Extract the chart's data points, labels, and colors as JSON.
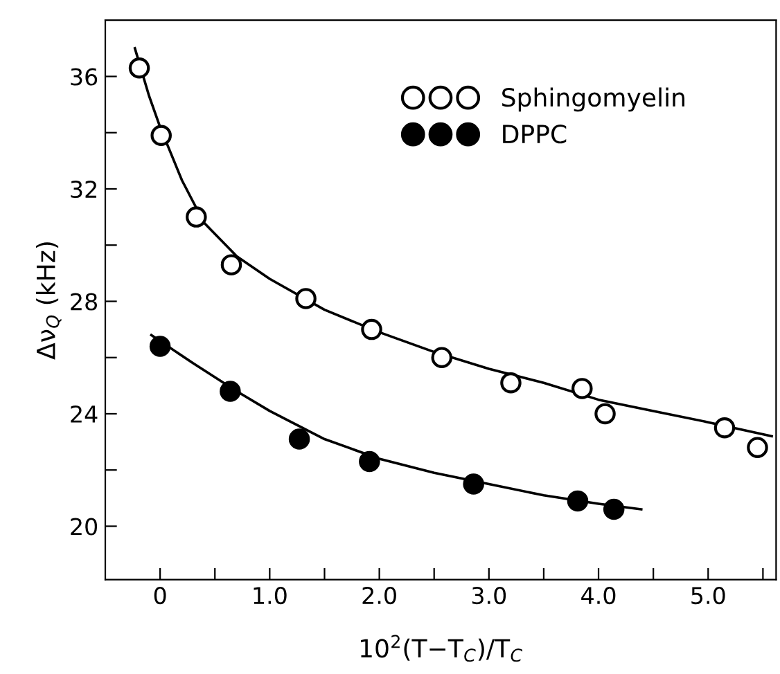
{
  "chart_data": {
    "type": "scatter",
    "xlabel": "10$^{2}$(T−T$_{C}$)/T$_{C}$",
    "ylabel": "Δν$_{Q}$ (kHz)",
    "xlim": [
      -0.5,
      5.62
    ],
    "ylim": [
      18.1,
      38
    ],
    "xticks": [
      0,
      {
        "value": 0.5,
        "label": null
      },
      {
        "value": 1,
        "label": "1.0"
      },
      {
        "value": 1.5,
        "label": null
      },
      {
        "value": 2,
        "label": "2.0"
      },
      {
        "value": 2.5,
        "label": null
      },
      {
        "value": 3,
        "label": "3.0"
      },
      {
        "value": 3.5,
        "label": null
      },
      {
        "value": 4,
        "label": "4.0"
      },
      {
        "value": 4.5,
        "label": null
      },
      {
        "value": 5,
        "label": "5.0"
      },
      {
        "value": 5.5,
        "label": null
      }
    ],
    "yticks": [
      20,
      {
        "value": 22,
        "label": null
      },
      24,
      {
        "value": 26,
        "label": null
      },
      28,
      {
        "value": 30,
        "label": null
      },
      32,
      {
        "value": 34,
        "label": null
      },
      36
    ],
    "grid": false,
    "legend": "top right",
    "series": [
      {
        "name": "Sphingomyelin",
        "marker": "circle",
        "color": "#ffffff",
        "x": [
          -0.19,
          0.01,
          0.33,
          0.65,
          1.33,
          1.93,
          2.57,
          3.2,
          3.85,
          4.06,
          5.15,
          5.45
        ],
        "values": [
          36.3,
          33.9,
          31.0,
          29.3,
          28.1,
          27.0,
          26.0,
          25.1,
          24.9,
          24.0,
          23.5,
          22.8
        ]
      },
      {
        "name": "DPPC",
        "marker": "circle",
        "color": "#000000",
        "x": [
          0.0,
          0.64,
          1.27,
          1.91,
          2.86,
          3.81,
          4.14
        ],
        "values": [
          26.4,
          24.8,
          23.1,
          22.3,
          21.5,
          20.9,
          20.6
        ]
      },
      {
        "type": "line",
        "color": "#000000",
        "x": [
          -0.23,
          -0.1,
          0,
          0.2,
          0.4,
          0.7,
          1.0,
          1.5,
          2.0,
          2.5,
          3.0,
          3.5,
          4.0,
          4.5,
          5.0,
          5.58
        ],
        "values": [
          37.0,
          35.3,
          34.2,
          32.3,
          30.8,
          29.6,
          28.8,
          27.7,
          26.9,
          26.2,
          25.6,
          25.1,
          24.5,
          24.1,
          23.7,
          23.2
        ]
      },
      {
        "type": "line",
        "color": "#000000",
        "x": [
          -0.08,
          0.3,
          0.7,
          1.0,
          1.5,
          2.0,
          2.5,
          3.0,
          3.5,
          4.0,
          4.39
        ],
        "values": [
          26.8,
          25.8,
          24.8,
          24.1,
          23.1,
          22.4,
          21.9,
          21.5,
          21.1,
          20.8,
          20.6
        ]
      }
    ]
  }
}
